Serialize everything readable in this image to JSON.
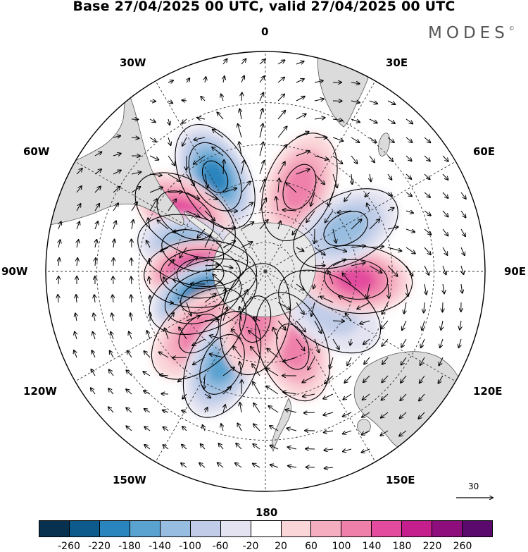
{
  "title": "Base 27/04/2025 00 UTC, valid 27/04/2025 00 UTC",
  "logo": {
    "text": "MODES",
    "mark": "©"
  },
  "longitude_labels": {
    "lon_0": "0",
    "lon_30e": "30E",
    "lon_60e": "60E",
    "lon_90e": "90E",
    "lon_120e": "120E",
    "lon_150e": "150E",
    "lon_180": "180",
    "lon_150w": "150W",
    "lon_120w": "120W",
    "lon_90w": "90W",
    "lon_60w": "60W",
    "lon_30w": "30W"
  },
  "vector_reference": "30",
  "colorbar": {
    "colors": [
      "#083150",
      "#0d5b8c",
      "#2a84bd",
      "#5aa3d0",
      "#97bde0",
      "#c1cde8",
      "#e3e3f1",
      "#ffffff",
      "#fad6d9",
      "#f5adc0",
      "#ef80aa",
      "#e34c9e",
      "#c41f8c",
      "#8e0e7d",
      "#5a0a6d"
    ],
    "labels": [
      "-260",
      "-220",
      "-180",
      "-140",
      "-100",
      "-60",
      "-20",
      "20",
      "60",
      "100",
      "140",
      "180",
      "220",
      "260"
    ]
  },
  "anomaly_centers": [
    {
      "lon": -28,
      "lat": -38,
      "value": -200
    },
    {
      "lon": 22,
      "lat": -45,
      "value": 130
    },
    {
      "lon": -55,
      "lat": -42,
      "value": 170
    },
    {
      "lon": -74,
      "lat": -52,
      "value": -160
    },
    {
      "lon": -92,
      "lat": -57,
      "value": 230
    },
    {
      "lon": -112,
      "lat": -56,
      "value": -220
    },
    {
      "lon": -133,
      "lat": -45,
      "value": 120
    },
    {
      "lon": -155,
      "lat": -40,
      "value": -140
    },
    {
      "lon": 160,
      "lat": -50,
      "value": 100
    },
    {
      "lon": 122,
      "lat": -52,
      "value": -90
    },
    {
      "lon": 95,
      "lat": -45,
      "value": 140
    },
    {
      "lon": 62,
      "lat": -45,
      "value": -120
    },
    {
      "lon": -168,
      "lat": -65,
      "value": 110
    }
  ]
}
